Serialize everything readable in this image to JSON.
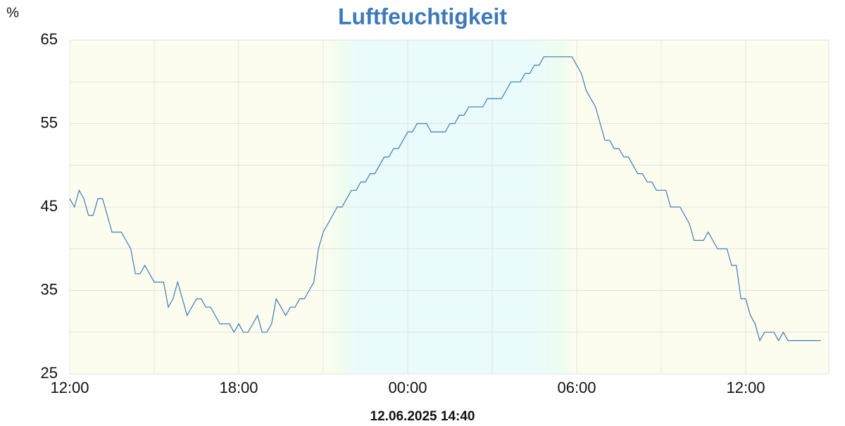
{
  "chart_data": {
    "type": "line",
    "title": "Luftfeuchtigkeit",
    "y_label": "%",
    "footer": "12.06.2025 14:40",
    "x": [
      0,
      10,
      20,
      30,
      40,
      50,
      60,
      70,
      90,
      110,
      130,
      140,
      150,
      160,
      180,
      200,
      210,
      220,
      230,
      250,
      270,
      280,
      290,
      300,
      320,
      340,
      350,
      360,
      370,
      380,
      400,
      410,
      420,
      430,
      440,
      460,
      470,
      480,
      490,
      500,
      520,
      530,
      540,
      570,
      580,
      600,
      610,
      620,
      630,
      640,
      650,
      670,
      680,
      690,
      700,
      720,
      730,
      740,
      760,
      770,
      800,
      810,
      820,
      830,
      840,
      850,
      880,
      890,
      920,
      940,
      960,
      970,
      980,
      990,
      1000,
      1010,
      1070,
      1090,
      1100,
      1120,
      1140,
      1150,
      1160,
      1170,
      1180,
      1190,
      1210,
      1220,
      1230,
      1240,
      1250,
      1270,
      1280,
      1300,
      1320,
      1330,
      1350,
      1360,
      1380,
      1400,
      1410,
      1420,
      1430,
      1440,
      1450,
      1460,
      1470,
      1480,
      1500,
      1510,
      1520,
      1530,
      1600
    ],
    "series": [
      {
        "name": "Luftfeuchtigkeit",
        "color": "#3d7ab8",
        "values": [
          46,
          45,
          47,
          46,
          44,
          44,
          46,
          46,
          42,
          42,
          40,
          37,
          37,
          38,
          36,
          36,
          33,
          34,
          36,
          32,
          34,
          34,
          33,
          33,
          31,
          31,
          30,
          31,
          30,
          30,
          32,
          30,
          30,
          31,
          34,
          32,
          33,
          33,
          34,
          34,
          36,
          40,
          42,
          45,
          45,
          47,
          47,
          48,
          48,
          49,
          49,
          51,
          51,
          52,
          52,
          54,
          54,
          55,
          55,
          54,
          54,
          55,
          55,
          56,
          56,
          57,
          57,
          58,
          58,
          60,
          60,
          61,
          61,
          62,
          62,
          63,
          63,
          61,
          59,
          57,
          53,
          53,
          52,
          52,
          51,
          51,
          49,
          49,
          48,
          48,
          47,
          47,
          45,
          45,
          43,
          41,
          41,
          42,
          40,
          40,
          38,
          38,
          34,
          34,
          32,
          31,
          29,
          30,
          30,
          29,
          30,
          29,
          29
        ]
      }
    ],
    "xlim": [
      0,
      1617
    ],
    "xticks": [
      {
        "value": 0,
        "label": "12:00"
      },
      {
        "value": 360,
        "label": "18:00"
      },
      {
        "value": 720,
        "label": "00:00"
      },
      {
        "value": 1080,
        "label": "06:00"
      },
      {
        "value": 1440,
        "label": "12:00"
      }
    ],
    "ylim": [
      25,
      65
    ],
    "yticks": [
      25,
      35,
      45,
      55,
      65
    ],
    "grid": true
  }
}
